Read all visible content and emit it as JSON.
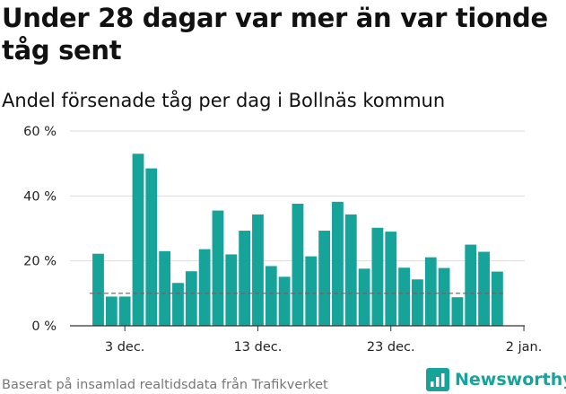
{
  "header": {
    "title": "Under 28 dagar var mer än var tionde tåg sent",
    "subtitle": "Andel försenade tåg per dag i Bollnäs kommun"
  },
  "footer": {
    "source": "Baserat på insamlad realtidsdata från Trafikverket",
    "brand": "Newsworthy"
  },
  "colors": {
    "bar": "#16a39a",
    "grid": "#dddddd",
    "reference_line": "#666666",
    "brand": "#16a39a"
  },
  "chart_data": {
    "type": "bar",
    "title": "Andel försenade tåg per dag i Bollnäs kommun",
    "xlabel": "",
    "ylabel": "",
    "ylim": [
      0,
      60
    ],
    "yticks": [
      0,
      20,
      40,
      60
    ],
    "ytick_labels": [
      "0 %",
      "20 %",
      "40 %",
      "60 %"
    ],
    "xtick_labels": [
      "3 dec.",
      "13 dec.",
      "23 dec.",
      "2 jan."
    ],
    "grid": true,
    "reference_line": 10,
    "categories": [
      "1 dec.",
      "2 dec.",
      "3 dec.",
      "4 dec.",
      "5 dec.",
      "6 dec.",
      "7 dec.",
      "8 dec.",
      "9 dec.",
      "10 dec.",
      "11 dec.",
      "12 dec.",
      "13 dec.",
      "14 dec.",
      "15 dec.",
      "16 dec.",
      "17 dec.",
      "18 dec.",
      "19 dec.",
      "20 dec.",
      "21 dec.",
      "22 dec.",
      "23 dec.",
      "24 dec.",
      "25 dec.",
      "26 dec.",
      "27 dec.",
      "28 dec.",
      "29 dec.",
      "30 dec.",
      "31 dec."
    ],
    "values": [
      22.2,
      9.0,
      9.0,
      53.0,
      48.5,
      23.0,
      13.2,
      16.8,
      23.6,
      35.5,
      22.0,
      29.3,
      34.3,
      18.4,
      15.1,
      37.6,
      21.4,
      29.3,
      38.2,
      34.3,
      17.6,
      30.2,
      29.0,
      17.9,
      14.3,
      21.1,
      17.8,
      8.8,
      25.0,
      22.8,
      16.7
    ]
  }
}
